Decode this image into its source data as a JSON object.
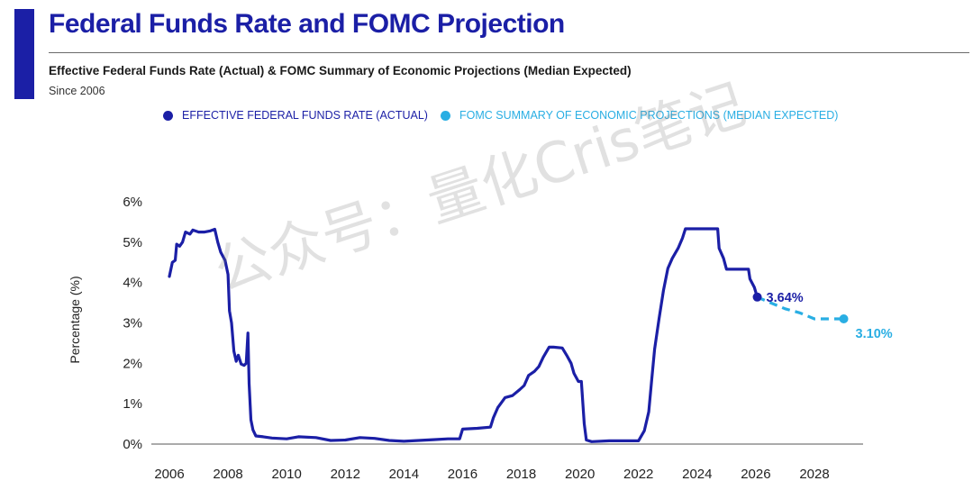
{
  "colors": {
    "actual": "#1b1fa6",
    "projection": "#29aee3",
    "accent": "#1b1fa6",
    "axis": "#555555"
  },
  "header": {
    "title": "Federal Funds Rate and FOMC Projection",
    "subtitle": "Effective Federal Funds Rate (Actual) & FOMC Summary of Economic Projections (Median Expected)",
    "since": "Since 2006"
  },
  "watermark": "公众号：量化Cris笔记",
  "chart_data": {
    "type": "line",
    "ylabel": "Percentage (%)",
    "xlim": [
      2006,
      2029.5
    ],
    "ylim": [
      0,
      6
    ],
    "x_ticks": [
      2006,
      2008,
      2010,
      2012,
      2014,
      2016,
      2018,
      2020,
      2022,
      2024,
      2026,
      2028
    ],
    "y_ticks": [
      {
        "value": 0,
        "label": "0%"
      },
      {
        "value": 1,
        "label": "1%"
      },
      {
        "value": 2,
        "label": "2%"
      },
      {
        "value": 3,
        "label": "3%"
      },
      {
        "value": 4,
        "label": "4%"
      },
      {
        "value": 5,
        "label": "5%"
      },
      {
        "value": 6,
        "label": "6%"
      }
    ],
    "legend": {
      "position": "top-center",
      "entries": [
        {
          "name": "EFFECTIVE FEDERAL FUNDS RATE (ACTUAL)",
          "series": "actual"
        },
        {
          "name": "FOMC SUMMARY OF ECONOMIC PROJECTIONS (MEDIAN EXPECTED)",
          "series": "projection"
        }
      ]
    },
    "series": [
      {
        "name": "Effective Federal Funds Rate (Actual)",
        "key": "actual",
        "style": "solid",
        "points": [
          [
            2006.0,
            4.15
          ],
          [
            2006.1,
            4.5
          ],
          [
            2006.2,
            4.55
          ],
          [
            2006.25,
            4.95
          ],
          [
            2006.35,
            4.9
          ],
          [
            2006.45,
            5.0
          ],
          [
            2006.55,
            5.25
          ],
          [
            2006.7,
            5.2
          ],
          [
            2006.8,
            5.3
          ],
          [
            2007.0,
            5.25
          ],
          [
            2007.2,
            5.25
          ],
          [
            2007.4,
            5.28
          ],
          [
            2007.55,
            5.32
          ],
          [
            2007.65,
            5.0
          ],
          [
            2007.75,
            4.75
          ],
          [
            2007.9,
            4.55
          ],
          [
            2008.0,
            4.2
          ],
          [
            2008.05,
            3.3
          ],
          [
            2008.12,
            3.0
          ],
          [
            2008.2,
            2.3
          ],
          [
            2008.28,
            2.05
          ],
          [
            2008.35,
            2.2
          ],
          [
            2008.45,
            1.98
          ],
          [
            2008.55,
            1.95
          ],
          [
            2008.62,
            2.0
          ],
          [
            2008.68,
            2.75
          ],
          [
            2008.72,
            1.5
          ],
          [
            2008.78,
            0.6
          ],
          [
            2008.85,
            0.35
          ],
          [
            2008.95,
            0.2
          ],
          [
            2009.2,
            0.18
          ],
          [
            2009.5,
            0.15
          ],
          [
            2010.0,
            0.13
          ],
          [
            2010.4,
            0.18
          ],
          [
            2011.0,
            0.16
          ],
          [
            2011.5,
            0.09
          ],
          [
            2012.0,
            0.1
          ],
          [
            2012.5,
            0.16
          ],
          [
            2013.0,
            0.14
          ],
          [
            2013.5,
            0.09
          ],
          [
            2014.0,
            0.07
          ],
          [
            2014.5,
            0.09
          ],
          [
            2015.0,
            0.11
          ],
          [
            2015.5,
            0.13
          ],
          [
            2015.9,
            0.13
          ],
          [
            2016.0,
            0.37
          ],
          [
            2016.5,
            0.39
          ],
          [
            2016.95,
            0.42
          ],
          [
            2017.05,
            0.65
          ],
          [
            2017.2,
            0.9
          ],
          [
            2017.45,
            1.15
          ],
          [
            2017.7,
            1.2
          ],
          [
            2017.95,
            1.35
          ],
          [
            2018.1,
            1.45
          ],
          [
            2018.25,
            1.7
          ],
          [
            2018.45,
            1.8
          ],
          [
            2018.6,
            1.92
          ],
          [
            2018.75,
            2.15
          ],
          [
            2018.95,
            2.4
          ],
          [
            2019.1,
            2.4
          ],
          [
            2019.4,
            2.38
          ],
          [
            2019.55,
            2.2
          ],
          [
            2019.7,
            2.0
          ],
          [
            2019.8,
            1.75
          ],
          [
            2019.95,
            1.55
          ],
          [
            2020.05,
            1.55
          ],
          [
            2020.15,
            0.5
          ],
          [
            2020.22,
            0.1
          ],
          [
            2020.4,
            0.06
          ],
          [
            2021.0,
            0.08
          ],
          [
            2021.5,
            0.08
          ],
          [
            2022.0,
            0.08
          ],
          [
            2022.2,
            0.33
          ],
          [
            2022.35,
            0.8
          ],
          [
            2022.45,
            1.6
          ],
          [
            2022.55,
            2.35
          ],
          [
            2022.7,
            3.1
          ],
          [
            2022.85,
            3.8
          ],
          [
            2023.0,
            4.35
          ],
          [
            2023.15,
            4.6
          ],
          [
            2023.35,
            4.85
          ],
          [
            2023.5,
            5.1
          ],
          [
            2023.6,
            5.33
          ],
          [
            2024.0,
            5.33
          ],
          [
            2024.5,
            5.33
          ],
          [
            2024.7,
            5.33
          ],
          [
            2024.75,
            4.85
          ],
          [
            2024.9,
            4.6
          ],
          [
            2025.0,
            4.33
          ],
          [
            2025.3,
            4.33
          ],
          [
            2025.6,
            4.33
          ],
          [
            2025.75,
            4.33
          ],
          [
            2025.8,
            4.09
          ],
          [
            2025.95,
            3.88
          ],
          [
            2026.05,
            3.64
          ]
        ]
      },
      {
        "name": "FOMC Summary of Economic Projections (Median Expected)",
        "key": "projection",
        "style": "dashed",
        "points": [
          [
            2026.05,
            3.64
          ],
          [
            2026.5,
            3.5
          ],
          [
            2027.0,
            3.35
          ],
          [
            2027.5,
            3.25
          ],
          [
            2028.0,
            3.1
          ],
          [
            2029.0,
            3.1
          ]
        ]
      }
    ],
    "annotations": [
      {
        "series": "actual",
        "x": 2026.05,
        "y": 3.64,
        "label": "3.64%"
      },
      {
        "series": "projection",
        "x": 2029.0,
        "y": 3.1,
        "label": "3.10%"
      }
    ]
  }
}
